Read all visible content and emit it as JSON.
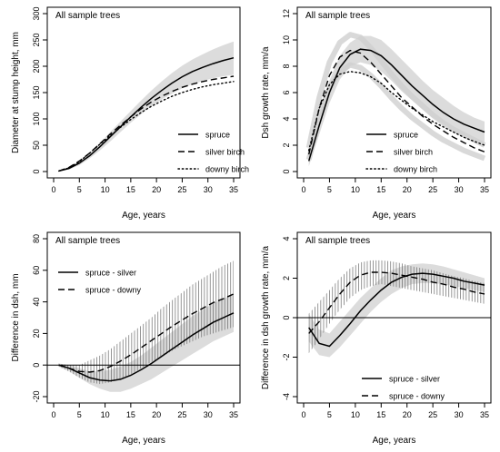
{
  "chart_data": [
    {
      "type": "line",
      "title": "All sample trees",
      "xlabel": "Age, years",
      "ylabel": "Diameter at stump height, mm",
      "xlim": [
        0,
        35
      ],
      "ylim": [
        0,
        300
      ],
      "xticks": [
        0,
        5,
        10,
        15,
        20,
        25,
        30,
        35
      ],
      "yticks": [
        0,
        50,
        100,
        150,
        200,
        250,
        300
      ],
      "grid": false,
      "legend": "bottom-right",
      "x": [
        1,
        3,
        5,
        7,
        9,
        11,
        13,
        15,
        17,
        19,
        21,
        23,
        25,
        27,
        29,
        31,
        33,
        35
      ],
      "series": [
        {
          "name": "spruce",
          "style": "solid",
          "values": [
            1,
            6,
            16,
            30,
            47,
            66,
            85,
            104,
            122,
            139,
            154,
            168,
            180,
            190,
            198,
            205,
            211,
            216
          ]
        },
        {
          "name": "silver birch",
          "style": "dashed",
          "values": [
            1,
            8,
            20,
            35,
            53,
            71,
            88,
            104,
            119,
            132,
            143,
            152,
            160,
            166,
            171,
            175,
            178,
            181
          ]
        },
        {
          "name": "downy birch",
          "style": "dotted",
          "values": [
            1,
            7,
            19,
            35,
            52,
            68,
            84,
            99,
            112,
            124,
            134,
            143,
            150,
            156,
            161,
            165,
            168,
            171
          ]
        }
      ],
      "bands": [
        {
          "of": "spruce",
          "lower": [
            0,
            4,
            12,
            25,
            40,
            57,
            75,
            93,
            109,
            124,
            137,
            148,
            158,
            166,
            172,
            177,
            181,
            184
          ],
          "upper": [
            2,
            8,
            20,
            35,
            54,
            75,
            95,
            115,
            135,
            154,
            171,
            187,
            201,
            213,
            223,
            232,
            240,
            247
          ]
        }
      ]
    },
    {
      "type": "line",
      "title": "All sample trees",
      "xlabel": "Age, years",
      "ylabel": "Dsh growth rate, mm/a",
      "xlim": [
        0,
        35
      ],
      "ylim": [
        0,
        12
      ],
      "xticks": [
        0,
        5,
        10,
        15,
        20,
        25,
        30,
        35
      ],
      "yticks": [
        0,
        2,
        4,
        6,
        8,
        10,
        12
      ],
      "grid": false,
      "legend": "bottom-right",
      "x": [
        1,
        3,
        5,
        7,
        9,
        11,
        13,
        15,
        17,
        19,
        21,
        23,
        25,
        27,
        29,
        31,
        33,
        35
      ],
      "series": [
        {
          "name": "spruce",
          "style": "solid",
          "values": [
            0.8,
            3.5,
            6.0,
            7.9,
            8.9,
            9.3,
            9.2,
            8.8,
            8.1,
            7.3,
            6.5,
            5.8,
            5.1,
            4.5,
            4.0,
            3.6,
            3.3,
            3.0
          ]
        },
        {
          "name": "silver birch",
          "style": "dashed",
          "values": [
            1.3,
            4.8,
            7.3,
            8.7,
            9.2,
            9.0,
            8.3,
            7.4,
            6.5,
            5.6,
            4.9,
            4.2,
            3.6,
            3.1,
            2.6,
            2.2,
            1.8,
            1.5
          ]
        },
        {
          "name": "downy birch",
          "style": "dotted",
          "values": [
            1.6,
            4.8,
            6.6,
            7.4,
            7.6,
            7.5,
            7.2,
            6.7,
            6.0,
            5.4,
            4.8,
            4.3,
            3.8,
            3.4,
            3.0,
            2.6,
            2.3,
            2.0
          ]
        }
      ],
      "bands": [
        {
          "of": "spruce",
          "lower": [
            0.4,
            2.8,
            5.2,
            7.0,
            8.0,
            8.3,
            8.1,
            7.6,
            6.9,
            6.1,
            5.4,
            4.7,
            4.1,
            3.6,
            3.1,
            2.7,
            2.4,
            2.1
          ],
          "upper": [
            1.3,
            4.3,
            6.9,
            8.8,
            9.8,
            10.3,
            10.3,
            10.0,
            9.3,
            8.5,
            7.7,
            6.9,
            6.2,
            5.6,
            5.0,
            4.5,
            4.1,
            3.8
          ]
        },
        {
          "of": "silver birch",
          "lower": [
            0.9,
            4.0,
            6.3,
            7.6,
            8.1,
            7.9,
            7.3,
            6.5,
            5.6,
            4.8,
            4.1,
            3.5,
            2.9,
            2.4,
            2.0,
            1.6,
            1.3,
            1.0
          ]
        },
        {
          "of": "silver birch",
          "upper": [
            1.8,
            5.6,
            8.3,
            9.8,
            10.4,
            10.2,
            9.4,
            8.4,
            7.4,
            6.5,
            5.7,
            5.0,
            4.3,
            3.7,
            3.2,
            2.8,
            2.4,
            2.0
          ]
        }
      ]
    },
    {
      "type": "line",
      "title": "All sample trees",
      "xlabel": "Age, years",
      "ylabel": "Difference in dsh, mm",
      "xlim": [
        0,
        35
      ],
      "ylim": [
        -20,
        80
      ],
      "xticks": [
        0,
        5,
        10,
        15,
        20,
        25,
        30,
        35
      ],
      "yticks": [
        -20,
        0,
        20,
        40,
        60,
        80
      ],
      "grid": false,
      "legend": "top-left",
      "hline": 0,
      "x": [
        1,
        3,
        5,
        7,
        9,
        11,
        13,
        15,
        17,
        19,
        21,
        23,
        25,
        27,
        29,
        31,
        33,
        35
      ],
      "series": [
        {
          "name": "spruce - silver",
          "style": "solid",
          "values": [
            0,
            -2,
            -5,
            -8,
            -9.5,
            -10,
            -9,
            -6.5,
            -3,
            1,
            5.5,
            10,
            14.5,
            19,
            23,
            27,
            30,
            33
          ]
        },
        {
          "name": "spruce - downy",
          "style": "dashed",
          "values": [
            0,
            -2,
            -4,
            -4.5,
            -3.5,
            -1,
            2.5,
            6.5,
            11,
            15.5,
            20,
            24.5,
            28.5,
            32.5,
            36,
            39.5,
            42,
            45
          ]
        }
      ],
      "bands": [
        {
          "of": "spruce - silver",
          "fill": "solid-grey",
          "lower": [
            -1,
            -4,
            -8,
            -12,
            -15,
            -17,
            -17,
            -15,
            -12,
            -9,
            -5,
            -1,
            3,
            7,
            11,
            15,
            18,
            21
          ],
          "upper": [
            1,
            0,
            -2,
            -4,
            -4,
            -3,
            -1,
            2,
            6,
            11,
            16,
            21,
            26,
            31,
            35,
            39,
            42,
            45
          ]
        },
        {
          "of": "spruce - downy",
          "fill": "hatched",
          "lower": [
            -1,
            -4,
            -8,
            -11,
            -12,
            -11,
            -9,
            -6,
            -2,
            2,
            5,
            9,
            12,
            15,
            18,
            20,
            22,
            24
          ],
          "upper": [
            1,
            0,
            0,
            3,
            6,
            10,
            15,
            20,
            25,
            30,
            36,
            41,
            46,
            51,
            55,
            59,
            63,
            66
          ]
        }
      ]
    },
    {
      "type": "line",
      "title": "All sample trees",
      "xlabel": "Age, years",
      "ylabel": "Difference in dsh growth rate, mm/a",
      "xlim": [
        0,
        35
      ],
      "ylim": [
        -4,
        4
      ],
      "xticks": [
        0,
        5,
        10,
        15,
        20,
        25,
        30,
        35
      ],
      "yticks": [
        -4,
        -2,
        0,
        2,
        4
      ],
      "grid": false,
      "legend": "bottom-right",
      "hline": 0,
      "x": [
        1,
        3,
        5,
        7,
        9,
        11,
        13,
        15,
        17,
        19,
        21,
        23,
        25,
        27,
        29,
        31,
        33,
        35
      ],
      "series": [
        {
          "name": "spruce - silver",
          "style": "solid",
          "values": [
            -0.5,
            -1.3,
            -1.45,
            -0.9,
            -0.3,
            0.35,
            0.9,
            1.4,
            1.8,
            2.05,
            2.2,
            2.25,
            2.2,
            2.1,
            2.0,
            1.85,
            1.75,
            1.65
          ]
        },
        {
          "name": "spruce - downy",
          "style": "dashed",
          "values": [
            -0.8,
            -0.2,
            0.5,
            1.2,
            1.8,
            2.15,
            2.3,
            2.3,
            2.25,
            2.15,
            2.05,
            1.95,
            1.8,
            1.7,
            1.55,
            1.45,
            1.3,
            1.2
          ]
        }
      ],
      "bands": [
        {
          "of": "spruce - silver",
          "fill": "solid-grey",
          "lower": [
            -1.2,
            -1.9,
            -2.0,
            -1.5,
            -0.9,
            -0.3,
            0.3,
            0.8,
            1.2,
            1.5,
            1.7,
            1.75,
            1.75,
            1.7,
            1.6,
            1.5,
            1.4,
            1.3
          ],
          "upper": [
            0.2,
            -0.6,
            -0.8,
            -0.2,
            0.4,
            1.0,
            1.5,
            2.0,
            2.4,
            2.6,
            2.7,
            2.75,
            2.7,
            2.6,
            2.45,
            2.3,
            2.15,
            2.0
          ]
        },
        {
          "of": "spruce - downy",
          "fill": "hatched",
          "lower": [
            -1.8,
            -1.1,
            -0.3,
            0.4,
            1.0,
            1.4,
            1.6,
            1.7,
            1.6,
            1.5,
            1.4,
            1.3,
            1.2,
            1.1,
            1.0,
            0.9,
            0.8,
            0.7
          ],
          "upper": [
            0.2,
            0.8,
            1.4,
            2.0,
            2.5,
            2.8,
            2.9,
            2.9,
            2.85,
            2.75,
            2.6,
            2.5,
            2.4,
            2.25,
            2.1,
            2.0,
            1.85,
            1.75
          ]
        }
      ]
    }
  ]
}
